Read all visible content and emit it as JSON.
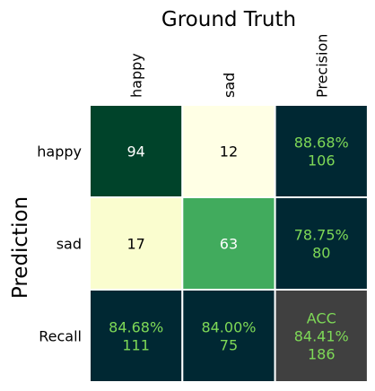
{
  "chart_data": {
    "type": "heatmap",
    "title": "Ground Truth",
    "ylabel": "Prediction",
    "columns": [
      "happy",
      "sad",
      "Precision"
    ],
    "rows": [
      "happy",
      "sad",
      "Recall"
    ],
    "cells": [
      {
        "row": 0,
        "col": 0,
        "lines": [
          "94"
        ],
        "value": 94,
        "kind": "count",
        "fill": "#00432a",
        "text_color": "#ffffff"
      },
      {
        "row": 0,
        "col": 1,
        "lines": [
          "12"
        ],
        "value": 12,
        "kind": "count",
        "fill": "#ffffe5",
        "text_color": "#000000"
      },
      {
        "row": 0,
        "col": 2,
        "lines": [
          "88.68%",
          "106"
        ],
        "value": 88.68,
        "kind": "metric",
        "fill": "#002833",
        "text_color": "#7ed957"
      },
      {
        "row": 1,
        "col": 0,
        "lines": [
          "17"
        ],
        "value": 17,
        "kind": "count",
        "fill": "#fafdcf",
        "text_color": "#000000"
      },
      {
        "row": 1,
        "col": 1,
        "lines": [
          "63"
        ],
        "value": 63,
        "kind": "count",
        "fill": "#41ab5d",
        "text_color": "#ffffff"
      },
      {
        "row": 1,
        "col": 2,
        "lines": [
          "78.75%",
          "80"
        ],
        "value": 78.75,
        "kind": "metric",
        "fill": "#002833",
        "text_color": "#7ed957"
      },
      {
        "row": 2,
        "col": 0,
        "lines": [
          "84.68%",
          "111"
        ],
        "value": 84.68,
        "kind": "metric",
        "fill": "#002833",
        "text_color": "#7ed957"
      },
      {
        "row": 2,
        "col": 1,
        "lines": [
          "84.00%",
          "75"
        ],
        "value": 84.0,
        "kind": "metric",
        "fill": "#002833",
        "text_color": "#7ed957"
      },
      {
        "row": 2,
        "col": 2,
        "lines": [
          "ACC",
          "84.41%",
          "186"
        ],
        "value": 84.41,
        "kind": "accuracy",
        "fill": "#404040",
        "text_color": "#7ed957"
      }
    ],
    "colormap": "YlGn",
    "grid": true,
    "legend": "none"
  }
}
